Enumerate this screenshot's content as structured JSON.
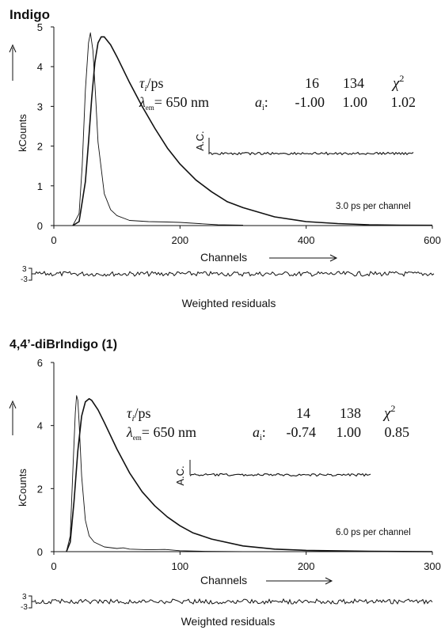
{
  "colors": {
    "ink": "#1a1a1a",
    "background": "#ffffff"
  },
  "chart_data": [
    {
      "type": "line",
      "title": "Indigo",
      "title_bold_part": "",
      "xlabel": "Channels",
      "ylabel": "kCounts",
      "xlim": [
        0,
        600
      ],
      "ylim": [
        0,
        5
      ],
      "x_ticks": [
        "0",
        "200",
        "400",
        "600"
      ],
      "y_ticks": [
        "0",
        "1",
        "2",
        "3",
        "4",
        "5"
      ],
      "channel_note": "3.0 ps per channel",
      "table": {
        "row1_label": "τᵢ/ps",
        "tau": [
          "16",
          "134"
        ],
        "chi_label": "χ²",
        "row2_label": "λem= 650 nm",
        "a_label": "aᵢ:",
        "a": [
          "-1.00",
          "1.00"
        ],
        "chi": "1.02"
      },
      "inset_label": "A.C.",
      "residuals_label": "Weighted residuals",
      "residual_range": [
        "3",
        "-3"
      ],
      "series": [
        {
          "values_x": [
            30,
            40,
            45,
            50,
            55,
            58,
            62,
            66,
            70,
            80,
            90,
            100,
            120,
            150,
            180,
            200,
            230,
            260,
            300
          ],
          "values_y": [
            0,
            0.3,
            1.5,
            3.4,
            4.6,
            4.85,
            4.4,
            3.3,
            2.1,
            0.8,
            0.4,
            0.25,
            0.13,
            0.1,
            0.09,
            0.08,
            0.05,
            0.02,
            0.01
          ]
        },
        {
          "values_x": [
            30,
            40,
            50,
            55,
            60,
            65,
            70,
            75,
            80,
            90,
            100,
            120,
            140,
            160,
            180,
            200,
            225,
            250,
            275,
            300,
            350,
            400,
            450,
            500,
            550,
            600
          ],
          "values_y": [
            0,
            0.1,
            1.1,
            2.1,
            3.2,
            4.1,
            4.6,
            4.75,
            4.75,
            4.55,
            4.25,
            3.6,
            3.0,
            2.45,
            1.95,
            1.55,
            1.15,
            0.85,
            0.6,
            0.45,
            0.22,
            0.1,
            0.05,
            0.02,
            0.01,
            0.005
          ]
        }
      ]
    },
    {
      "type": "line",
      "title": "4,4’-diBrIndigo (",
      "title_bold_part": "1",
      "title_suffix": ")",
      "xlabel": "Channels",
      "ylabel": "kCounts",
      "xlim": [
        0,
        300
      ],
      "ylim": [
        0,
        6
      ],
      "x_ticks": [
        "0",
        "100",
        "200",
        "300"
      ],
      "y_ticks": [
        "0",
        "2",
        "4",
        "6"
      ],
      "channel_note": "6.0 ps per channel",
      "table": {
        "row1_label": "τᵢ/ps",
        "tau": [
          "14",
          "138"
        ],
        "chi_label": "χ²",
        "row2_label": "λem= 650 nm",
        "a_label": "aᵢ:",
        "a": [
          "-0.74",
          "1.00"
        ],
        "chi": "0.85"
      },
      "inset_label": "A.C.",
      "residuals_label": "Weighted residuals",
      "residual_range": [
        "3",
        "-3"
      ],
      "series": [
        {
          "values_x": [
            10,
            13,
            15,
            17,
            18,
            19,
            20,
            22,
            25,
            28,
            32,
            40,
            50,
            55,
            60,
            75,
            88,
            100,
            120,
            150
          ],
          "values_y": [
            0,
            0.5,
            2.5,
            4.4,
            4.95,
            4.8,
            4.1,
            2.4,
            1.0,
            0.5,
            0.3,
            0.15,
            0.1,
            0.12,
            0.08,
            0.06,
            0.07,
            0.03,
            0.01,
            0.0
          ]
        },
        {
          "values_x": [
            10,
            13,
            16,
            19,
            22,
            25,
            28,
            30,
            35,
            40,
            50,
            60,
            70,
            80,
            90,
            100,
            110,
            125,
            150,
            175,
            200,
            250,
            300
          ],
          "values_y": [
            0,
            0.3,
            1.6,
            3.2,
            4.3,
            4.75,
            4.85,
            4.8,
            4.5,
            4.1,
            3.25,
            2.5,
            1.9,
            1.45,
            1.1,
            0.82,
            0.6,
            0.4,
            0.18,
            0.08,
            0.04,
            0.01,
            0.0
          ]
        }
      ]
    }
  ]
}
